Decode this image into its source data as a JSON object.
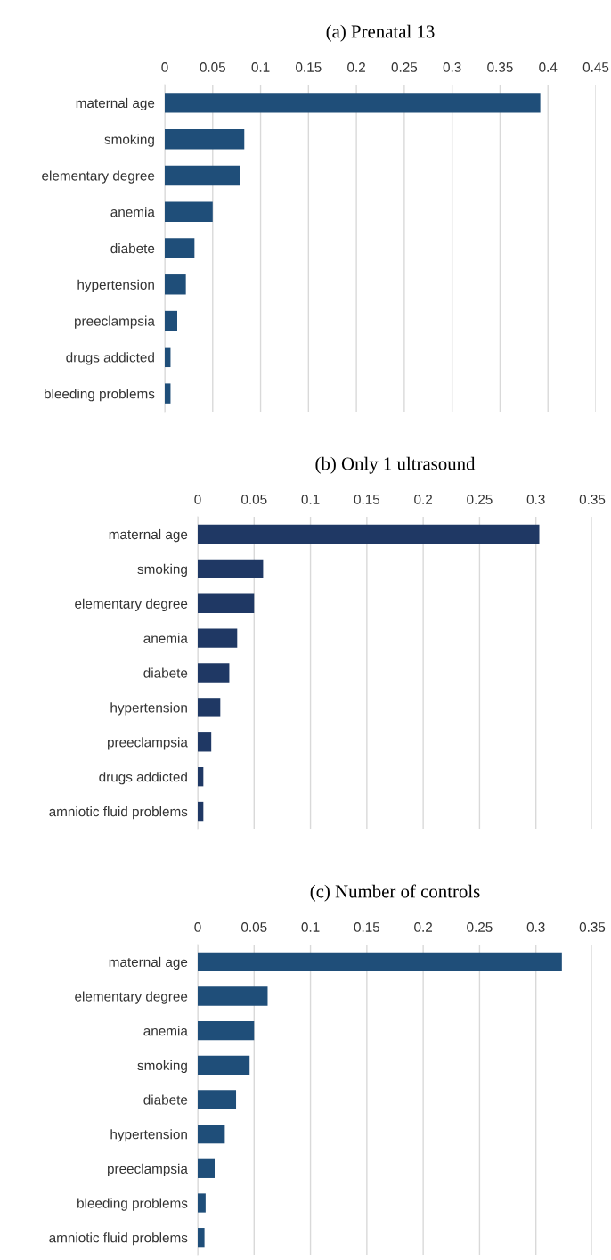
{
  "chart_data": [
    {
      "type": "bar",
      "orientation": "horizontal",
      "title": "(a) Prenatal 13",
      "categories": [
        "maternal age",
        "smoking",
        "elementary degree",
        "anemia",
        "diabete",
        "hypertension",
        "preeclampsia",
        "drugs addicted",
        "bleeding problems"
      ],
      "values": [
        0.392,
        0.083,
        0.079,
        0.05,
        0.031,
        0.022,
        0.013,
        0.006,
        0.006
      ],
      "color": "#1f4e79",
      "xlim": [
        0,
        0.45
      ],
      "xticks": [
        0,
        0.05,
        0.1,
        0.15,
        0.2,
        0.25,
        0.3,
        0.35,
        0.4,
        0.45
      ],
      "grid": "x"
    },
    {
      "type": "bar",
      "orientation": "horizontal",
      "title": "(b) Only 1 ultrasound",
      "categories": [
        "maternal age",
        "smoking",
        "elementary degree",
        "anemia",
        "diabete",
        "hypertension",
        "preeclampsia",
        "drugs addicted",
        "amniotic fluid problems"
      ],
      "values": [
        0.303,
        0.058,
        0.05,
        0.035,
        0.028,
        0.02,
        0.012,
        0.005,
        0.005
      ],
      "color": "#1f3864",
      "xlim": [
        0,
        0.35
      ],
      "xticks": [
        0,
        0.05,
        0.1,
        0.15,
        0.2,
        0.25,
        0.3,
        0.35
      ],
      "grid": "x"
    },
    {
      "type": "bar",
      "orientation": "horizontal",
      "title": "(c) Number of controls",
      "categories": [
        "maternal age",
        "elementary degree",
        "anemia",
        "smoking",
        "diabete",
        "hypertension",
        "preeclampsia",
        "bleeding problems",
        "amniotic fluid problems"
      ],
      "values": [
        0.323,
        0.062,
        0.05,
        0.046,
        0.034,
        0.024,
        0.015,
        0.007,
        0.006
      ],
      "color": "#1f4e79",
      "xlim": [
        0,
        0.35
      ],
      "xticks": [
        0,
        0.05,
        0.1,
        0.15,
        0.2,
        0.25,
        0.3,
        0.35
      ],
      "grid": "x"
    }
  ]
}
